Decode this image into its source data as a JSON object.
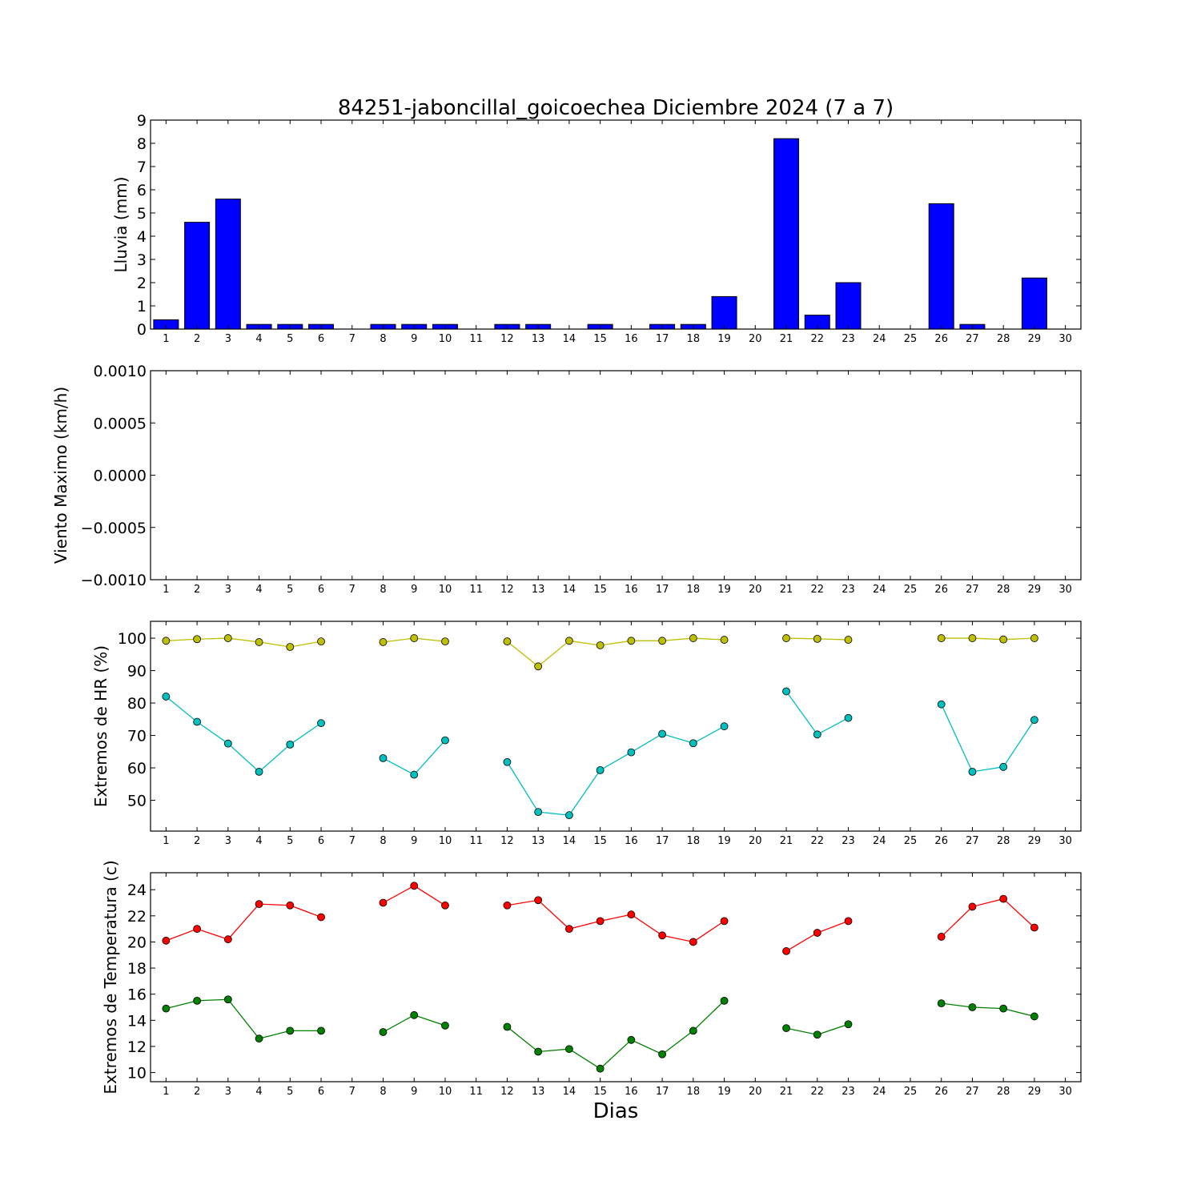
{
  "chart_data": {
    "title": "84251-jaboncillal_goicoechea Diciembre 2024  (7 a 7)",
    "xlabel": "Dias",
    "days": [
      1,
      2,
      3,
      4,
      5,
      6,
      7,
      8,
      9,
      10,
      11,
      12,
      13,
      14,
      15,
      16,
      17,
      18,
      19,
      20,
      21,
      22,
      23,
      24,
      25,
      26,
      27,
      28,
      29,
      30
    ],
    "panels": [
      {
        "id": "lluvia",
        "type": "bar",
        "ylabel": "Lluvia (mm)",
        "ylim": [
          0,
          9
        ],
        "yticks": [
          0,
          1,
          2,
          3,
          4,
          5,
          6,
          7,
          8,
          9
        ],
        "ytick_labels": [
          "0",
          "1",
          "2",
          "3",
          "4",
          "5",
          "6",
          "7",
          "8",
          "9"
        ],
        "bar_color": "#0000ff",
        "values": [
          0.4,
          4.6,
          5.6,
          0.2,
          0.2,
          0.2,
          0,
          0.2,
          0.2,
          0.2,
          0,
          0.2,
          0.2,
          0,
          0.2,
          0,
          0.2,
          0.2,
          1.4,
          0,
          8.2,
          0.6,
          2.0,
          0,
          0,
          5.4,
          0.2,
          0,
          2.2,
          0
        ]
      },
      {
        "id": "viento",
        "type": "line",
        "ylabel": "Viento Maximo (km/h)",
        "ylim": [
          -0.001,
          0.001
        ],
        "yticks": [
          -0.001,
          -0.0005,
          0,
          0.0005,
          0.001
        ],
        "ytick_labels": [
          "−0.0010",
          "−0.0005",
          "0.0000",
          "0.0005",
          "0.0010"
        ],
        "series": []
      },
      {
        "id": "hr",
        "type": "line",
        "ylabel": "Extremos de HR (%)",
        "ylim": [
          40.5,
          105.2
        ],
        "yticks": [
          50,
          60,
          70,
          80,
          90,
          100
        ],
        "ytick_labels": [
          "50",
          "60",
          "70",
          "80",
          "90",
          "100"
        ],
        "series": [
          {
            "color": "#bfbf00",
            "values": [
              99.2,
              99.7,
              100,
              98.8,
              97.3,
              99.0,
              null,
              98.8,
              100,
              99.0,
              null,
              99.0,
              91.3,
              99.2,
              97.8,
              99.2,
              99.2,
              100,
              99.5,
              null,
              100,
              99.8,
              99.5,
              null,
              null,
              100,
              100,
              99.6,
              100,
              null
            ]
          },
          {
            "color": "#00bfbf",
            "values": [
              82.0,
              74.2,
              67.5,
              58.8,
              67.2,
              73.8,
              null,
              63.0,
              57.9,
              68.5,
              null,
              61.8,
              46.4,
              45.4,
              59.3,
              64.8,
              70.5,
              67.6,
              72.8,
              null,
              83.6,
              70.3,
              75.4,
              null,
              null,
              79.6,
              58.8,
              60.3,
              74.8,
              null
            ]
          }
        ]
      },
      {
        "id": "temperatura",
        "type": "line",
        "ylabel": "Extremos de Temperatura (c)",
        "ylim": [
          9.3,
          25.3
        ],
        "yticks": [
          10,
          12,
          14,
          16,
          18,
          20,
          22,
          24
        ],
        "ytick_labels": [
          "10",
          "12",
          "14",
          "16",
          "18",
          "20",
          "22",
          "24"
        ],
        "series": [
          {
            "color": "#ff0000",
            "values": [
              20.1,
              21.0,
              20.2,
              22.9,
              22.8,
              21.9,
              null,
              23.0,
              24.3,
              22.8,
              null,
              22.8,
              23.2,
              21.0,
              21.6,
              22.1,
              20.5,
              20.0,
              21.6,
              null,
              19.3,
              20.7,
              21.6,
              null,
              null,
              20.4,
              22.7,
              23.3,
              21.1,
              null
            ]
          },
          {
            "color": "#008000",
            "values": [
              14.9,
              15.5,
              15.6,
              12.6,
              13.2,
              13.2,
              null,
              13.1,
              14.4,
              13.6,
              null,
              13.5,
              11.6,
              11.8,
              10.3,
              12.5,
              11.4,
              13.2,
              15.5,
              null,
              13.4,
              12.9,
              13.7,
              null,
              null,
              15.3,
              15.0,
              14.9,
              14.3,
              null
            ]
          }
        ]
      }
    ]
  }
}
